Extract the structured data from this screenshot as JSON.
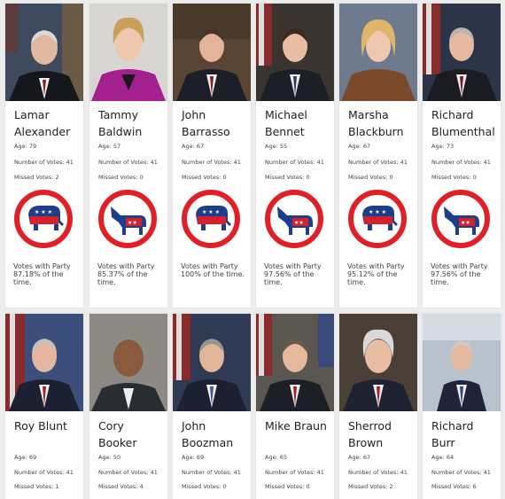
{
  "colors": {
    "republican_red": "#d6202e",
    "democrat_blue": "#1e3e8c",
    "ring_red": "#e11f26"
  },
  "senators": [
    {
      "name": "Lamar Alexander",
      "age": "Age: 79",
      "votes": "Number of Votes: 41",
      "missed": "Missed Votes: 2",
      "party_icon": "republican-elephant-icon",
      "party_votes": "Votes with Party 87.18% of the time."
    },
    {
      "name": "Tammy Baldwin",
      "age": "Age: 57",
      "votes": "Number of Votes: 41",
      "missed": "Missed Votes: 0",
      "party_icon": "democrat-donkey-icon",
      "party_votes": "Votes with Party 85.37% of the time."
    },
    {
      "name": "John Barrasso",
      "age": "Age: 67",
      "votes": "Number of Votes: 41",
      "missed": "Missed Votes: 0",
      "party_icon": "republican-elephant-icon",
      "party_votes": "Votes with Party 100% of the time."
    },
    {
      "name": "Michael Bennet",
      "age": "Age: 55",
      "votes": "Number of Votes: 41",
      "missed": "Missed Votes: 0",
      "party_icon": "democrat-donkey-icon",
      "party_votes": "Votes with Party 97.56% of the time."
    },
    {
      "name": "Marsha Blackburn",
      "age": "Age: 67",
      "votes": "Number of Votes: 41",
      "missed": "Missed Votes: 0",
      "party_icon": "republican-elephant-icon",
      "party_votes": "Votes with Party 95.12% of the time."
    },
    {
      "name": "Richard Blumenthal",
      "age": "Age: 73",
      "votes": "Number of Votes: 41",
      "missed": "Missed Votes: 0",
      "party_icon": "democrat-donkey-icon",
      "party_votes": "Votes with Party 97.56% of the time."
    },
    {
      "name": "Roy Blunt",
      "age": "Age: 69",
      "votes": "Number of Votes: 41",
      "missed": "Missed Votes: 1"
    },
    {
      "name": "Cory Booker",
      "age": "Age: 50",
      "votes": "Number of Votes: 41",
      "missed": "Missed Votes: 4"
    },
    {
      "name": "John Boozman",
      "age": "Age: 69",
      "votes": "Number of Votes: 41",
      "missed": "Missed Votes: 0"
    },
    {
      "name": "Mike Braun",
      "age": "Age: 65",
      "votes": "Number of Votes: 41",
      "missed": "Missed Votes: 0"
    },
    {
      "name": "Sherrod Brown",
      "age": "Age: 67",
      "votes": "Number of Votes: 41",
      "missed": "Missed Votes: 2"
    },
    {
      "name": "Richard Burr",
      "age": "Age: 64",
      "votes": "Number of Votes: 41",
      "missed": "Missed Votes: 6"
    }
  ]
}
